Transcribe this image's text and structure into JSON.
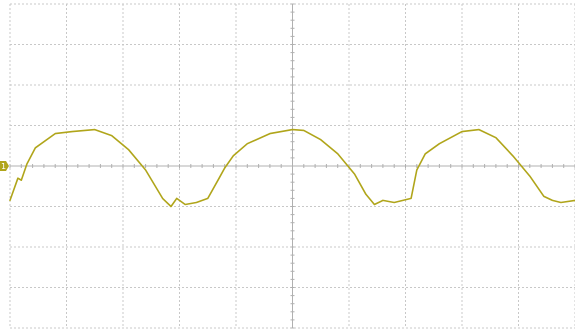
{
  "chart_data": {
    "type": "line",
    "title": "",
    "xlabel": "",
    "ylabel": "",
    "grid": true,
    "divisions": {
      "x": 10,
      "y": 8
    },
    "xlim": [
      0,
      10
    ],
    "ylim": [
      -4,
      4
    ],
    "series": [
      {
        "color": "#b0a51a",
        "channel_marker": "1",
        "x": [
          0.0,
          0.14,
          0.2,
          0.3,
          0.45,
          0.8,
          1.1,
          1.5,
          1.8,
          2.1,
          2.4,
          2.7,
          2.85,
          2.95,
          3.1,
          3.3,
          3.5,
          3.7,
          3.8,
          3.95,
          4.2,
          4.6,
          5.0,
          5.2,
          5.5,
          5.8,
          6.1,
          6.3,
          6.45,
          6.6,
          6.8,
          7.1,
          7.2,
          7.35,
          7.6,
          8.0,
          8.3,
          8.6,
          8.9,
          9.2,
          9.45,
          9.6,
          9.75,
          10.0
        ],
        "y": [
          -0.85,
          -0.3,
          -0.35,
          0.05,
          0.45,
          0.8,
          0.85,
          0.9,
          0.75,
          0.4,
          -0.1,
          -0.8,
          -1.0,
          -0.8,
          -0.95,
          -0.9,
          -0.8,
          -0.3,
          -0.05,
          0.25,
          0.55,
          0.8,
          0.9,
          0.88,
          0.65,
          0.3,
          -0.2,
          -0.7,
          -0.95,
          -0.85,
          -0.9,
          -0.8,
          -0.1,
          0.3,
          0.55,
          0.85,
          0.9,
          0.7,
          0.25,
          -0.25,
          -0.75,
          -0.85,
          -0.9,
          -0.85
        ]
      }
    ]
  }
}
